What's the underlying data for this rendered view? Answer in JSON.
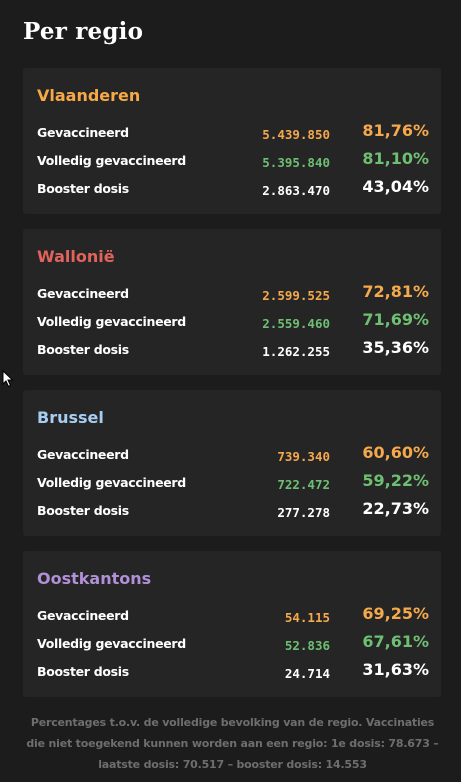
{
  "page": {
    "title": "Per regio"
  },
  "colors": {
    "background": "#1c1c1c",
    "card": "#252525",
    "first_dose": "#f5a94c",
    "full": "#6fbf73",
    "booster": "#ffffff"
  },
  "regions": [
    {
      "name": "Vlaanderen",
      "color": "#f7a947",
      "rows": [
        {
          "label": "Gevaccineerd",
          "count": "5.439.850",
          "pct": "81,76%"
        },
        {
          "label": "Volledig gevaccineerd",
          "count": "5.395.840",
          "pct": "81,10%"
        },
        {
          "label": "Booster dosis",
          "count": "2.863.470",
          "pct": "43,04%"
        }
      ]
    },
    {
      "name": "Wallonië",
      "color": "#e0645b",
      "rows": [
        {
          "label": "Gevaccineerd",
          "count": "2.599.525",
          "pct": "72,81%"
        },
        {
          "label": "Volledig gevaccineerd",
          "count": "2.559.460",
          "pct": "71,69%"
        },
        {
          "label": "Booster dosis",
          "count": "1.262.255",
          "pct": "35,36%"
        }
      ]
    },
    {
      "name": "Brussel",
      "color": "#a8cdf2",
      "rows": [
        {
          "label": "Gevaccineerd",
          "count": "739.340",
          "pct": "60,60%"
        },
        {
          "label": "Volledig gevaccineerd",
          "count": "722.472",
          "pct": "59,22%"
        },
        {
          "label": "Booster dosis",
          "count": "277.278",
          "pct": "22,73%"
        }
      ]
    },
    {
      "name": "Oostkantons",
      "color": "#b190d8",
      "rows": [
        {
          "label": "Gevaccineerd",
          "count": "54.115",
          "pct": "69,25%"
        },
        {
          "label": "Volledig gevaccineerd",
          "count": "52.836",
          "pct": "67,61%"
        },
        {
          "label": "Booster dosis",
          "count": "24.714",
          "pct": "31,63%"
        }
      ]
    }
  ],
  "footnote": "Percentages t.o.v. de volledige bevolking van de regio. Vaccinaties die niet toegekend kunnen worden aan een regio: 1e dosis: 78.673 – laatste dosis: 70.517 – booster dosis: 14.553"
}
